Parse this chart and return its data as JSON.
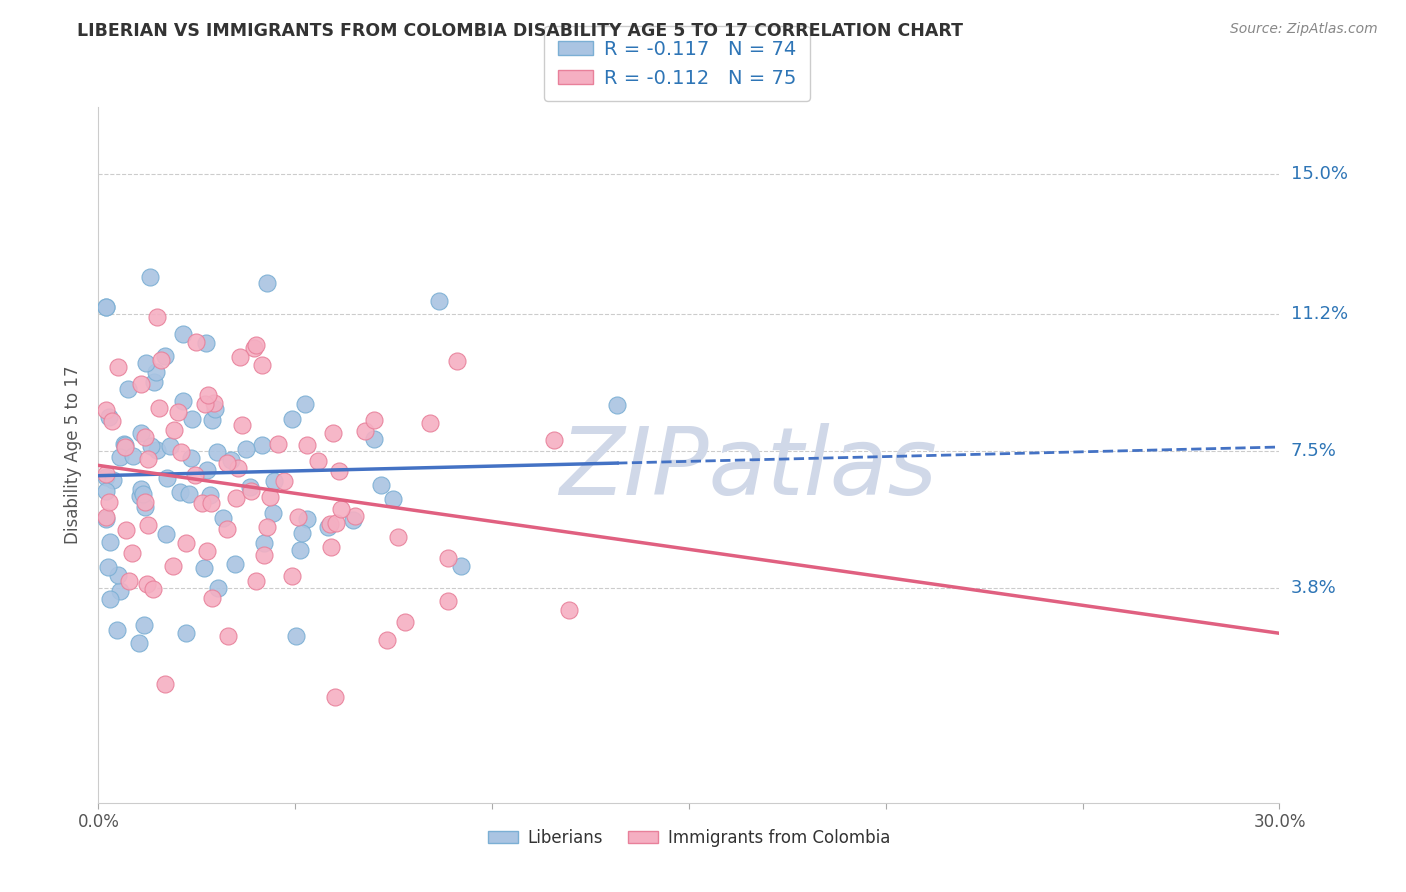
{
  "title": "LIBERIAN VS IMMIGRANTS FROM COLOMBIA DISABILITY AGE 5 TO 17 CORRELATION CHART",
  "source": "Source: ZipAtlas.com",
  "ylabel": "Disability Age 5 to 17",
  "ytick_labels": [
    "15.0%",
    "11.2%",
    "7.5%",
    "3.8%"
  ],
  "ytick_values": [
    0.15,
    0.112,
    0.075,
    0.038
  ],
  "xmin": 0.0,
  "xmax": 0.3,
  "ymin": -0.02,
  "ymax": 0.168,
  "liberian_color": "#aac4e2",
  "colombia_color": "#f5afc2",
  "liberian_edge_color": "#7bafd4",
  "colombia_edge_color": "#e8809a",
  "liberian_trendline_color": "#4472c4",
  "colombia_trendline_color": "#e06080",
  "watermark_text": "ZIPatlas",
  "watermark_color": "#d0d8e8",
  "R1": "-0.117",
  "N1": "74",
  "R2": "-0.112",
  "N2": "75",
  "legend_label1": "Liberians",
  "legend_label2": "Immigrants from Colombia",
  "accent_color": "#2e75b6",
  "text_color_dark": "#333333",
  "text_color_num": "#2e75b6"
}
